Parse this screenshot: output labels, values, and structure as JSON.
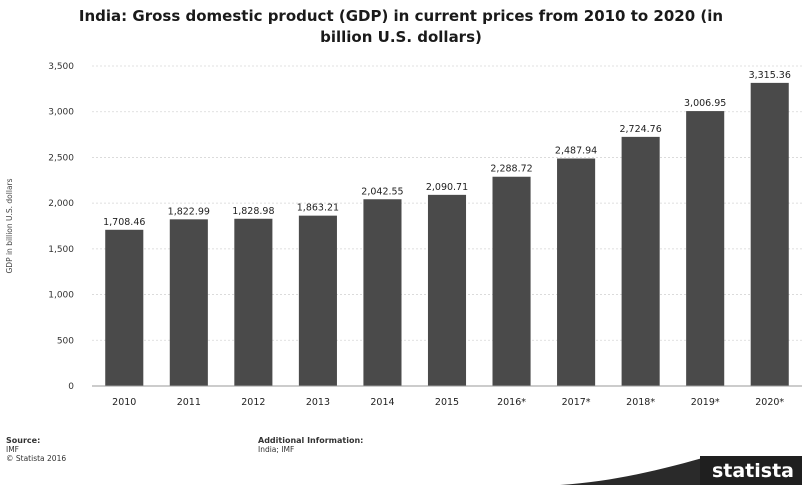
{
  "chart_data": {
    "type": "bar",
    "title_line1": "India: Gross domestic product (GDP) in current prices from 2010 to 2020 (in",
    "title_line2": "billion U.S. dollars)",
    "ylabel": "GDP in billion U.S. dollars",
    "xlabel": "",
    "categories": [
      "2010",
      "2011",
      "2012",
      "2013",
      "2014",
      "2015",
      "2016*",
      "2017*",
      "2018*",
      "2019*",
      "2020*"
    ],
    "values": [
      1708.46,
      1822.99,
      1828.98,
      1863.21,
      2042.55,
      2090.71,
      2288.72,
      2487.94,
      2724.76,
      3006.95,
      3315.36
    ],
    "value_labels": [
      "1,708.46",
      "1,822.99",
      "1,828.98",
      "1,863.21",
      "2,042.55",
      "2,090.71",
      "2,288.72",
      "2,487.94",
      "2,724.76",
      "3,006.95",
      "3,315.36"
    ],
    "yticks": [
      0,
      500,
      1000,
      1500,
      2000,
      2500,
      3000,
      3500
    ],
    "ytick_labels": [
      "0",
      "500",
      "1,000",
      "1,500",
      "2,000",
      "2,500",
      "3,000",
      "3,500"
    ],
    "ylim": [
      0,
      3500
    ],
    "bar_color": "#4a4a4a",
    "grid": true
  },
  "footer": {
    "source_head": "Source:",
    "source_line1": "IMF",
    "source_line2": "© Statista 2016",
    "info_head": "Additional Information:",
    "info_line1": "India; IMF"
  },
  "brand": {
    "name": "statista"
  }
}
